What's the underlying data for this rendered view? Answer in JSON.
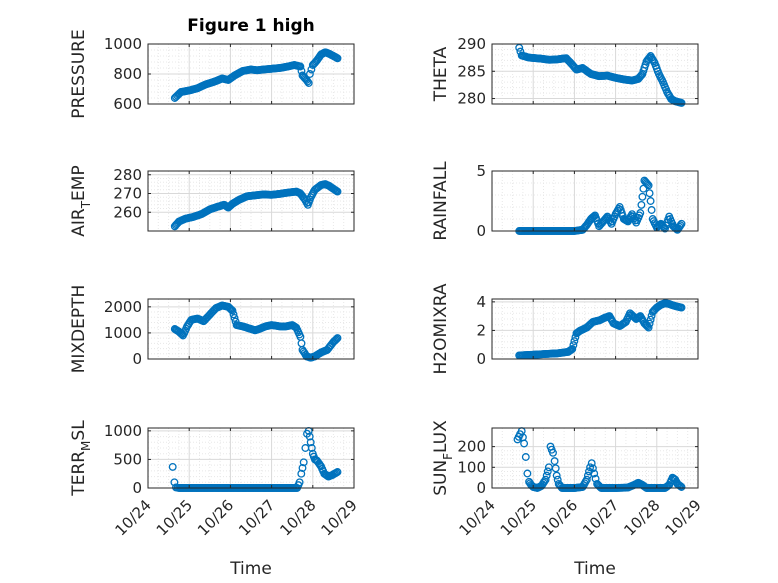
{
  "figure": {
    "title": "Figure 1 high",
    "xlabel_left": "Time",
    "xlabel_right": "Time"
  },
  "colors": {
    "marker": "#0072BD",
    "axis": "#262626",
    "grid": "#d9d9d9",
    "minor_grid": "#e8e8e8"
  },
  "time_ticks": [
    "10/24",
    "10/25",
    "10/26",
    "10/27",
    "10/28",
    "10/29"
  ],
  "chart_data": [
    {
      "id": "pressure",
      "type": "scatter",
      "ylabel": "PRESSURE",
      "ylim": [
        600,
        1000
      ],
      "yticks": [
        600,
        800,
        1000
      ],
      "ytick_labels": [
        "600",
        "800",
        "1000"
      ],
      "xlim": [
        0,
        5
      ],
      "grid": true,
      "keypoints": [
        [
          0.65,
          640
        ],
        [
          0.8,
          680
        ],
        [
          1.0,
          690
        ],
        [
          1.2,
          705
        ],
        [
          1.4,
          730
        ],
        [
          1.6,
          748
        ],
        [
          1.8,
          770
        ],
        [
          1.95,
          760
        ],
        [
          2.1,
          790
        ],
        [
          2.3,
          820
        ],
        [
          2.5,
          830
        ],
        [
          2.65,
          825
        ],
        [
          2.8,
          830
        ],
        [
          3.0,
          835
        ],
        [
          3.2,
          840
        ],
        [
          3.4,
          850
        ],
        [
          3.55,
          860
        ],
        [
          3.7,
          850
        ],
        [
          3.75,
          790
        ],
        [
          3.85,
          760
        ],
        [
          3.9,
          740
        ],
        [
          3.93,
          800
        ],
        [
          4.0,
          860
        ],
        [
          4.1,
          890
        ],
        [
          4.2,
          930
        ],
        [
          4.3,
          945
        ],
        [
          4.4,
          935
        ],
        [
          4.5,
          920
        ],
        [
          4.6,
          905
        ]
      ]
    },
    {
      "id": "theta",
      "type": "scatter",
      "ylabel": "THETA",
      "ylim": [
        279,
        290
      ],
      "yticks": [
        280,
        285,
        290
      ],
      "ytick_labels": [
        "280",
        "285",
        "290"
      ],
      "xlim": [
        0,
        5
      ],
      "grid": true,
      "keypoints": [
        [
          0.66,
          289.3
        ],
        [
          0.72,
          287.9
        ],
        [
          0.9,
          287.5
        ],
        [
          1.2,
          287.3
        ],
        [
          1.4,
          287.1
        ],
        [
          1.6,
          287.2
        ],
        [
          1.8,
          287.4
        ],
        [
          1.95,
          286.2
        ],
        [
          2.05,
          285.3
        ],
        [
          2.2,
          285.6
        ],
        [
          2.4,
          284.5
        ],
        [
          2.6,
          284.1
        ],
        [
          2.8,
          284.2
        ],
        [
          3.0,
          283.8
        ],
        [
          3.2,
          283.5
        ],
        [
          3.4,
          283.3
        ],
        [
          3.55,
          283.6
        ],
        [
          3.65,
          284.5
        ],
        [
          3.75,
          286.8
        ],
        [
          3.85,
          287.8
        ],
        [
          3.95,
          286.5
        ],
        [
          4.05,
          284.5
        ],
        [
          4.15,
          283.0
        ],
        [
          4.25,
          281.2
        ],
        [
          4.35,
          279.9
        ],
        [
          4.45,
          279.5
        ],
        [
          4.55,
          279.3
        ],
        [
          4.6,
          279.2
        ]
      ]
    },
    {
      "id": "air_temp",
      "type": "scatter",
      "ylabel_main": "AIR",
      "ylabel_sub": "T",
      "ylabel_tail": "EMP",
      "ylim": [
        250,
        282
      ],
      "yticks": [
        260,
        270,
        280
      ],
      "ytick_labels": [
        "260",
        "270",
        "280"
      ],
      "xlim": [
        0,
        5
      ],
      "grid": true,
      "keypoints": [
        [
          0.65,
          252.5
        ],
        [
          0.75,
          255
        ],
        [
          0.9,
          256.5
        ],
        [
          1.1,
          257.5
        ],
        [
          1.3,
          259
        ],
        [
          1.5,
          261.5
        ],
        [
          1.7,
          263
        ],
        [
          1.85,
          264
        ],
        [
          1.95,
          262.5
        ],
        [
          2.05,
          264.5
        ],
        [
          2.2,
          266.5
        ],
        [
          2.4,
          268.5
        ],
        [
          2.6,
          269
        ],
        [
          2.8,
          269.5
        ],
        [
          3.0,
          269.3
        ],
        [
          3.2,
          269.8
        ],
        [
          3.4,
          270.5
        ],
        [
          3.6,
          271
        ],
        [
          3.7,
          270
        ],
        [
          3.8,
          267
        ],
        [
          3.88,
          264
        ],
        [
          3.95,
          268
        ],
        [
          4.05,
          272
        ],
        [
          4.2,
          274.5
        ],
        [
          4.3,
          275
        ],
        [
          4.4,
          274
        ],
        [
          4.5,
          272.5
        ],
        [
          4.6,
          271
        ]
      ]
    },
    {
      "id": "rainfall",
      "type": "scatter",
      "ylabel": "RAINFALL",
      "ylim": [
        0,
        5
      ],
      "yticks": [
        0,
        5
      ],
      "ytick_labels": [
        "0",
        "5"
      ],
      "xlim": [
        0,
        5
      ],
      "grid": true,
      "keypoints": [
        [
          0.66,
          0
        ],
        [
          1.0,
          0
        ],
        [
          1.5,
          0
        ],
        [
          2.0,
          0
        ],
        [
          2.2,
          0.1
        ],
        [
          2.3,
          0.5
        ],
        [
          2.4,
          1.0
        ],
        [
          2.5,
          1.3
        ],
        [
          2.6,
          0.4
        ],
        [
          2.7,
          0.8
        ],
        [
          2.8,
          1.2
        ],
        [
          2.9,
          0.6
        ],
        [
          3.0,
          1.4
        ],
        [
          3.1,
          2.0
        ],
        [
          3.2,
          1.0
        ],
        [
          3.3,
          0.8
        ],
        [
          3.4,
          1.4
        ],
        [
          3.5,
          0.7
        ],
        [
          3.6,
          1.5
        ],
        [
          3.7,
          4.2
        ],
        [
          3.8,
          3.8
        ],
        [
          3.85,
          2.5
        ],
        [
          3.9,
          1.0
        ],
        [
          4.0,
          0.3
        ],
        [
          4.1,
          0.6
        ],
        [
          4.2,
          0.2
        ],
        [
          4.3,
          1.2
        ],
        [
          4.4,
          0.4
        ],
        [
          4.5,
          0.1
        ],
        [
          4.6,
          0.6
        ]
      ]
    },
    {
      "id": "mixdepth",
      "type": "scatter",
      "ylabel": "MIXDEPTH",
      "ylim": [
        0,
        2300
      ],
      "yticks": [
        0,
        1000,
        2000
      ],
      "ytick_labels": [
        "0",
        "1000",
        "2000"
      ],
      "xlim": [
        0,
        5
      ],
      "grid": true,
      "keypoints": [
        [
          0.65,
          1150
        ],
        [
          0.75,
          1050
        ],
        [
          0.85,
          900
        ],
        [
          0.95,
          1250
        ],
        [
          1.05,
          1500
        ],
        [
          1.2,
          1550
        ],
        [
          1.35,
          1450
        ],
        [
          1.5,
          1700
        ],
        [
          1.65,
          1950
        ],
        [
          1.8,
          2050
        ],
        [
          1.95,
          2000
        ],
        [
          2.05,
          1850
        ],
        [
          2.15,
          1300
        ],
        [
          2.3,
          1250
        ],
        [
          2.5,
          1150
        ],
        [
          2.6,
          1100
        ],
        [
          2.7,
          1150
        ],
        [
          2.85,
          1250
        ],
        [
          3.0,
          1300
        ],
        [
          3.2,
          1250
        ],
        [
          3.35,
          1250
        ],
        [
          3.5,
          1300
        ],
        [
          3.6,
          1200
        ],
        [
          3.7,
          850
        ],
        [
          3.75,
          350
        ],
        [
          3.85,
          100
        ],
        [
          3.95,
          50
        ],
        [
          4.05,
          100
        ],
        [
          4.2,
          250
        ],
        [
          4.35,
          350
        ],
        [
          4.5,
          650
        ],
        [
          4.6,
          800
        ]
      ]
    },
    {
      "id": "h2omixra",
      "type": "scatter",
      "ylabel": "H2OMIXRA",
      "ylim": [
        0,
        4.2
      ],
      "yticks": [
        0,
        2,
        4
      ],
      "ytick_labels": [
        "0",
        "2",
        "4"
      ],
      "xlim": [
        0,
        5
      ],
      "grid": true,
      "keypoints": [
        [
          0.66,
          0.25
        ],
        [
          1.0,
          0.3
        ],
        [
          1.3,
          0.35
        ],
        [
          1.6,
          0.4
        ],
        [
          1.85,
          0.5
        ],
        [
          1.95,
          0.7
        ],
        [
          2.05,
          1.8
        ],
        [
          2.15,
          2.0
        ],
        [
          2.3,
          2.2
        ],
        [
          2.45,
          2.6
        ],
        [
          2.6,
          2.7
        ],
        [
          2.75,
          2.9
        ],
        [
          2.85,
          3.0
        ],
        [
          2.95,
          2.5
        ],
        [
          3.1,
          2.3
        ],
        [
          3.25,
          2.6
        ],
        [
          3.35,
          3.2
        ],
        [
          3.5,
          2.8
        ],
        [
          3.6,
          3.0
        ],
        [
          3.7,
          2.5
        ],
        [
          3.8,
          2.2
        ],
        [
          3.9,
          3.3
        ],
        [
          4.0,
          3.6
        ],
        [
          4.1,
          3.8
        ],
        [
          4.2,
          3.9
        ],
        [
          4.3,
          3.85
        ],
        [
          4.45,
          3.7
        ],
        [
          4.6,
          3.6
        ]
      ]
    },
    {
      "id": "terr_msl",
      "type": "scatter",
      "ylabel_main": "TERR",
      "ylabel_sub": "M",
      "ylabel_tail": "SL",
      "ylim": [
        0,
        1050
      ],
      "yticks": [
        0,
        500,
        1000
      ],
      "ytick_labels": [
        "0",
        "500",
        "1000"
      ],
      "xlim": [
        0,
        5
      ],
      "grid": true,
      "keypoints": [
        [
          0.6,
          370
        ],
        [
          0.64,
          100
        ],
        [
          0.68,
          10
        ],
        [
          0.75,
          0
        ],
        [
          1.2,
          0
        ],
        [
          1.8,
          0
        ],
        [
          2.4,
          0
        ],
        [
          3.0,
          0
        ],
        [
          3.5,
          0
        ],
        [
          3.62,
          0
        ],
        [
          3.68,
          100
        ],
        [
          3.72,
          250
        ],
        [
          3.78,
          450
        ],
        [
          3.82,
          700
        ],
        [
          3.86,
          950
        ],
        [
          3.9,
          1000
        ],
        [
          3.95,
          800
        ],
        [
          4.0,
          600
        ],
        [
          4.05,
          500
        ],
        [
          4.1,
          480
        ],
        [
          4.2,
          380
        ],
        [
          4.28,
          250
        ],
        [
          4.38,
          200
        ],
        [
          4.48,
          230
        ],
        [
          4.6,
          280
        ]
      ]
    },
    {
      "id": "sun_flux",
      "type": "scatter",
      "ylabel_main": "SUN",
      "ylabel_sub": "F",
      "ylabel_tail": "LUX",
      "ylim": [
        0,
        290
      ],
      "yticks": [
        0,
        100,
        200
      ],
      "ytick_labels": [
        "0",
        "100",
        "200"
      ],
      "xlim": [
        0,
        5
      ],
      "grid": true,
      "keypoints": [
        [
          0.62,
          235
        ],
        [
          0.68,
          260
        ],
        [
          0.72,
          275
        ],
        [
          0.78,
          215
        ],
        [
          0.82,
          150
        ],
        [
          0.86,
          70
        ],
        [
          0.9,
          30
        ],
        [
          0.95,
          15
        ],
        [
          1.0,
          5
        ],
        [
          1.1,
          0
        ],
        [
          1.2,
          10
        ],
        [
          1.3,
          40
        ],
        [
          1.38,
          100
        ],
        [
          1.42,
          200
        ],
        [
          1.48,
          170
        ],
        [
          1.52,
          130
        ],
        [
          1.57,
          60
        ],
        [
          1.62,
          20
        ],
        [
          1.7,
          0
        ],
        [
          2.0,
          0
        ],
        [
          2.2,
          5
        ],
        [
          2.3,
          40
        ],
        [
          2.38,
          100
        ],
        [
          2.42,
          120
        ],
        [
          2.48,
          70
        ],
        [
          2.55,
          20
        ],
        [
          2.65,
          0
        ],
        [
          3.0,
          0
        ],
        [
          3.3,
          2
        ],
        [
          3.45,
          15
        ],
        [
          3.55,
          25
        ],
        [
          3.65,
          15
        ],
        [
          3.75,
          0
        ],
        [
          4.0,
          0
        ],
        [
          4.2,
          0
        ],
        [
          4.3,
          15
        ],
        [
          4.38,
          50
        ],
        [
          4.45,
          40
        ],
        [
          4.5,
          20
        ],
        [
          4.6,
          5
        ]
      ]
    }
  ]
}
